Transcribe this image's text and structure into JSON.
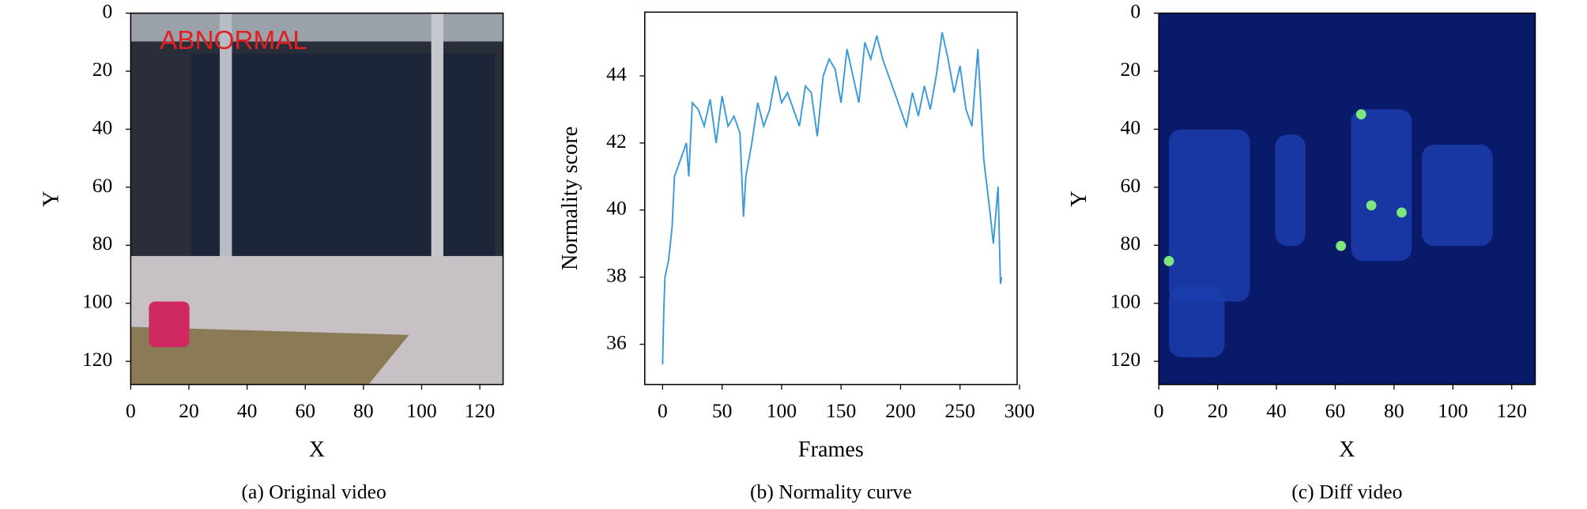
{
  "chart_data": [
    {
      "type": "image",
      "title": "(a) Original video",
      "xlabel": "X",
      "ylabel": "Y",
      "annotation": "ABNORMAL",
      "xlim": [
        0,
        128
      ],
      "ylim": [
        128,
        0
      ],
      "xticks": [
        0,
        20,
        40,
        60,
        80,
        100,
        120
      ],
      "yticks": [
        0,
        20,
        40,
        60,
        80,
        100,
        120
      ]
    },
    {
      "type": "line",
      "title": "(b) Normality curve",
      "xlabel": "Frames",
      "ylabel": "Normality score",
      "color": "#3a9ad9",
      "x": [
        0,
        1,
        2,
        5,
        8,
        10,
        15,
        20,
        22,
        25,
        30,
        35,
        40,
        45,
        50,
        55,
        60,
        65,
        68,
        70,
        75,
        80,
        85,
        90,
        95,
        100,
        105,
        110,
        115,
        120,
        125,
        130,
        135,
        140,
        145,
        150,
        155,
        160,
        165,
        170,
        175,
        180,
        185,
        190,
        195,
        200,
        205,
        210,
        215,
        220,
        225,
        230,
        235,
        240,
        245,
        250,
        255,
        260,
        265,
        270,
        275,
        278,
        282,
        284,
        285
      ],
      "values": [
        35.4,
        37,
        38,
        38.5,
        39.5,
        41,
        41.5,
        42,
        41,
        43.2,
        43,
        42.5,
        43.3,
        42,
        43.4,
        42.5,
        42.8,
        42.3,
        39.8,
        41,
        42,
        43.2,
        42.5,
        43,
        44,
        43.2,
        43.5,
        43,
        42.5,
        43.7,
        43.5,
        42.2,
        44,
        44.5,
        44.2,
        43.2,
        44.8,
        44,
        43.2,
        45,
        44.5,
        45.2,
        44.5,
        44,
        43.5,
        43,
        42.5,
        43.5,
        42.8,
        43.7,
        43,
        44,
        45.3,
        44.5,
        43.5,
        44.3,
        43,
        42.5,
        44.8,
        41.5,
        40,
        39,
        40.7,
        37.8,
        38
      ],
      "xlim": [
        -15,
        298
      ],
      "ylim": [
        34.8,
        45.9
      ],
      "xticks": [
        0,
        50,
        100,
        150,
        200,
        250,
        300
      ],
      "yticks": [
        36,
        38,
        40,
        42,
        44
      ]
    },
    {
      "type": "heatmap",
      "title": "(c) Diff video",
      "xlabel": "X",
      "ylabel": "Y",
      "xlim": [
        0,
        128
      ],
      "ylim": [
        128,
        0
      ],
      "xticks": [
        0,
        20,
        40,
        60,
        80,
        100,
        120
      ],
      "yticks": [
        0,
        20,
        40,
        60,
        80,
        100,
        120
      ]
    }
  ]
}
